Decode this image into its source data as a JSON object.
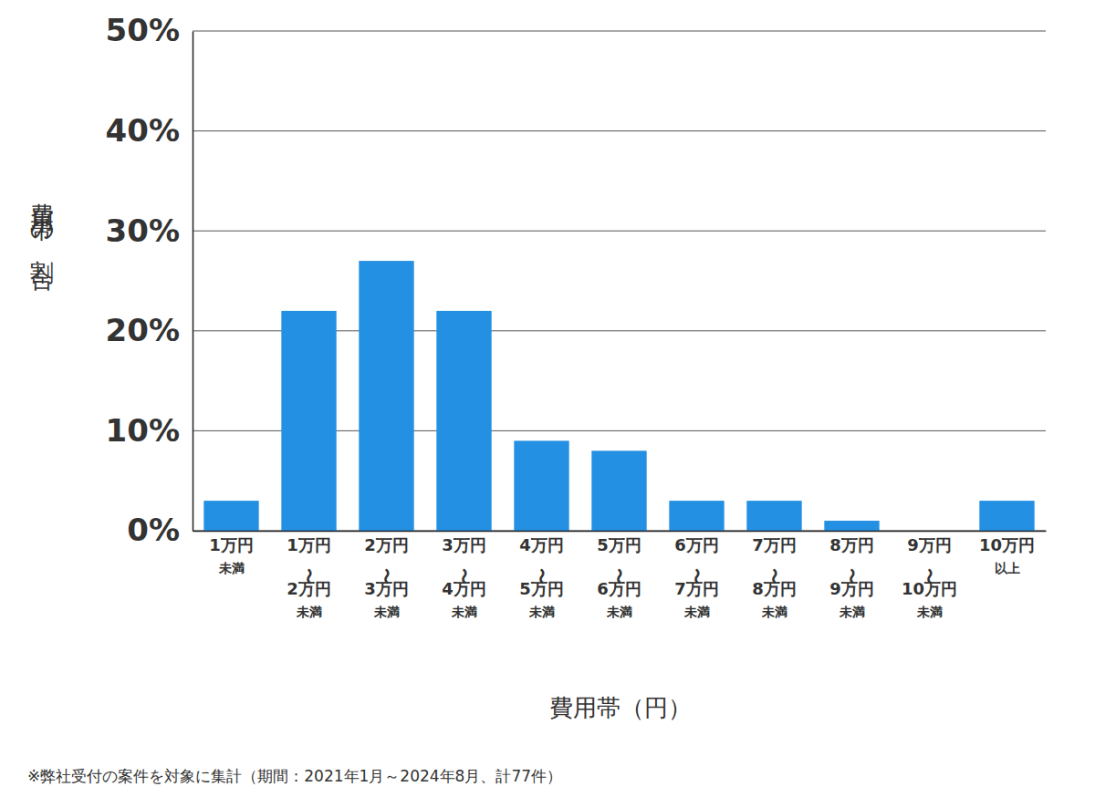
{
  "chart_data": {
    "type": "bar",
    "x_label": "費用帯（円）",
    "y_label": "費用帯の割合",
    "note": "※弊社受付の案件を対象に集計（期間：2021年1月～2024年8月、計77件）",
    "categories": [
      [
        "1万円",
        "未満"
      ],
      [
        "1万円",
        "〜",
        "2万円",
        "未満"
      ],
      [
        "2万円",
        "〜",
        "3万円",
        "未満"
      ],
      [
        "3万円",
        "〜",
        "4万円",
        "未満"
      ],
      [
        "4万円",
        "〜",
        "5万円",
        "未満"
      ],
      [
        "5万円",
        "〜",
        "6万円",
        "未満"
      ],
      [
        "6万円",
        "〜",
        "7万円",
        "未満"
      ],
      [
        "7万円",
        "〜",
        "8万円",
        "未満"
      ],
      [
        "8万円",
        "〜",
        "9万円",
        "未満"
      ],
      [
        "9万円",
        "〜",
        "10万円",
        "未満"
      ],
      [
        "10万円",
        "以上"
      ]
    ],
    "values": [
      3,
      22,
      27,
      22,
      9,
      8,
      3,
      3,
      1,
      0,
      3
    ],
    "color": "#2490e3",
    "ylim": [
      0,
      50
    ],
    "yticks": [
      {
        "value": 0,
        "label": "0%"
      },
      {
        "value": 10,
        "label": "10%"
      },
      {
        "value": 20,
        "label": "20%"
      },
      {
        "value": 30,
        "label": "30%"
      },
      {
        "value": 40,
        "label": "40%"
      },
      {
        "value": 50,
        "label": "50%"
      }
    ],
    "grid": true
  }
}
